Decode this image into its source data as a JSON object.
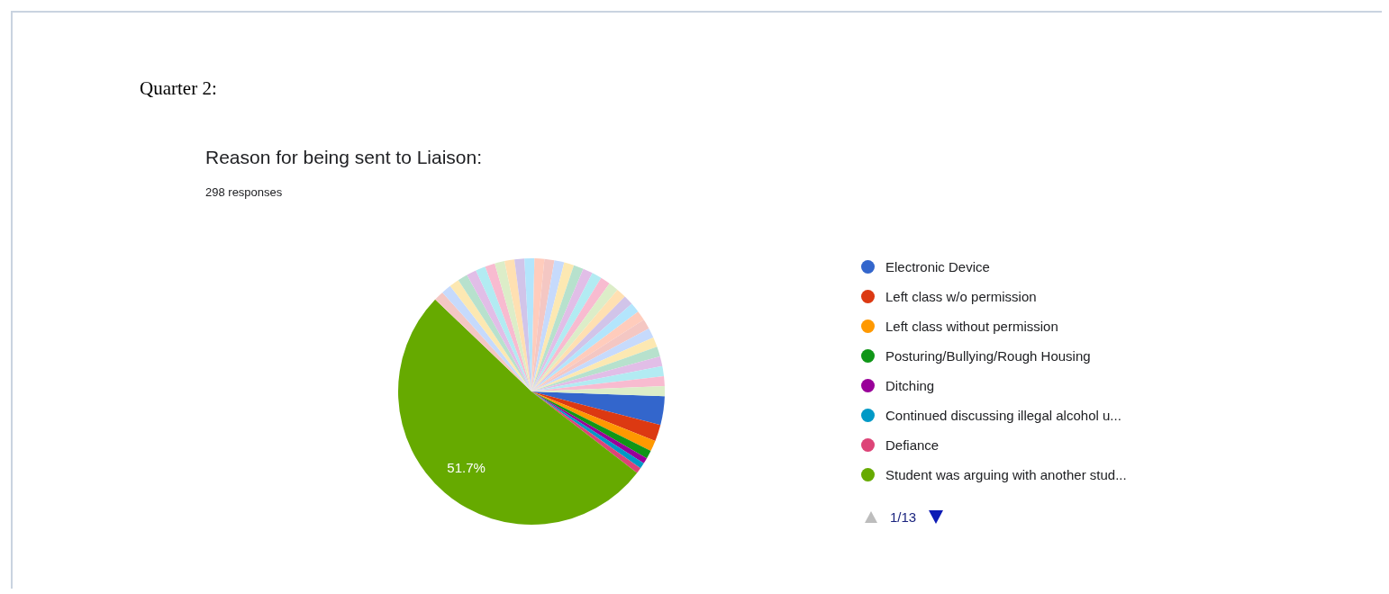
{
  "chart_data": {
    "type": "pie",
    "title": "Reason for being sent to Liaison:",
    "subtitle": "298 responses",
    "annotations": [
      "Quarter 2:",
      "1/13"
    ],
    "legend": "right",
    "categories": [
      "Electronic Device",
      "Left class w/o permission",
      "Left class without permission",
      "Posturing/Bullying/Rough Housing",
      "Ditching",
      "Continued discussing illegal alcohol u...",
      "Defiance",
      "Student was arguing with another stud...",
      null,
      null,
      null,
      null,
      null,
      null,
      null,
      null,
      null,
      null,
      null,
      null,
      null,
      null,
      null,
      null,
      null,
      null,
      null,
      null,
      null,
      null,
      null,
      null,
      null,
      null,
      null,
      null,
      null,
      null,
      null,
      null
    ],
    "values": [
      3.5,
      2.0,
      1.3,
      1.0,
      0.7,
      0.7,
      0.7,
      51.7,
      1.2,
      1.2,
      1.2,
      1.2,
      1.2,
      1.2,
      1.2,
      1.2,
      1.2,
      1.2,
      1.2,
      1.2,
      1.2,
      1.2,
      1.2,
      1.2,
      1.2,
      1.2,
      1.2,
      1.2,
      1.2,
      1.2,
      1.2,
      1.2,
      1.2,
      1.2,
      1.2,
      1.2,
      1.2,
      1.2,
      1.2,
      1.2
    ],
    "value_labels": [
      null,
      null,
      null,
      null,
      null,
      null,
      null,
      "51.7%",
      null,
      null,
      null,
      null,
      null,
      null,
      null,
      null,
      null,
      null,
      null,
      null,
      null,
      null,
      null,
      null,
      null,
      null,
      null,
      null,
      null,
      null,
      null,
      null,
      null,
      null,
      null,
      null,
      null,
      null,
      null,
      null
    ],
    "colors": [
      "#3366cc",
      "#dc3912",
      "#ff9900",
      "#109618",
      "#990099",
      "#0099c6",
      "#dd4477",
      "#66aa00",
      "#f4c7c3",
      "#c6dafc",
      "#fce8b2",
      "#b7e1cd",
      "#e1bee7",
      "#b2ebf2",
      "#f8bbd0",
      "#dcedc8",
      "#ffe0b2",
      "#d1c4e9",
      "#b3e5fc",
      "#ffccbc",
      "#f4c7c3",
      "#c6dafc",
      "#fce8b2",
      "#b7e1cd",
      "#e1bee7",
      "#b2ebf2",
      "#f8bbd0",
      "#dcedc8",
      "#ffe0b2",
      "#d1c4e9",
      "#b3e5fc",
      "#ffccbc",
      "#f4c7c3",
      "#c6dafc",
      "#fce8b2",
      "#b7e1cd",
      "#e1bee7",
      "#b2ebf2",
      "#f8bbd0",
      "#dcedc8"
    ]
  }
}
